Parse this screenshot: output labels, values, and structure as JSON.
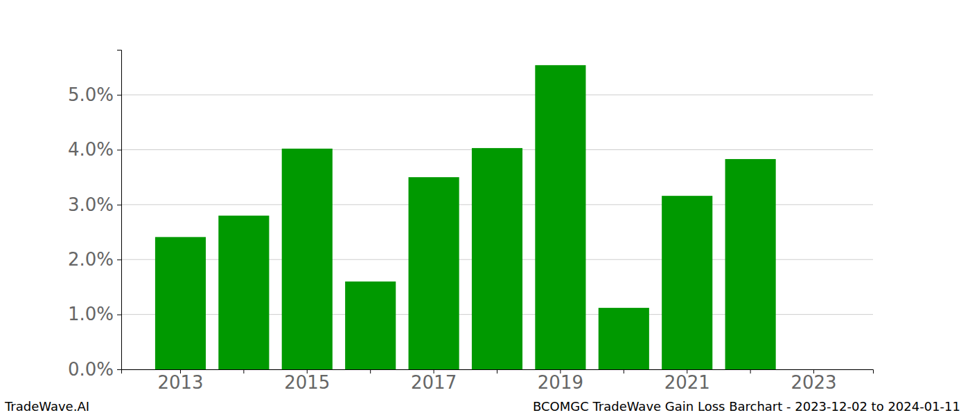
{
  "chart_data": {
    "type": "bar",
    "title": "BCOMGC TradeWave Gain Loss Barchart - 2023-12-02 to 2024-01-11",
    "annotations": [
      "TradeWave.AI"
    ],
    "categories": [
      "2013",
      null,
      "2015",
      null,
      "2017",
      null,
      "2019",
      null,
      "2021",
      null,
      "2023"
    ],
    "values": [
      2.41,
      2.8,
      4.02,
      1.6,
      3.5,
      4.03,
      5.54,
      1.12,
      3.16,
      3.83,
      null
    ],
    "color": "#009900",
    "ylim": [
      0,
      5.82
    ],
    "yticks": [
      {
        "value": 0,
        "label": "0.0%"
      },
      {
        "value": 1,
        "label": "1.0%"
      },
      {
        "value": 2,
        "label": "2.0%"
      },
      {
        "value": 3,
        "label": "3.0%"
      },
      {
        "value": 4,
        "label": "4.0%"
      },
      {
        "value": 5,
        "label": "5.0%"
      }
    ],
    "grid": true
  }
}
